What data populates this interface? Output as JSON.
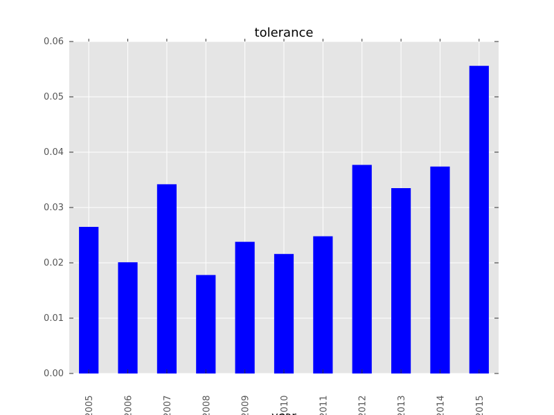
{
  "chart_data": {
    "type": "bar",
    "title": "tolerance",
    "xlabel": "year",
    "ylabel": "",
    "categories": [
      "2005",
      "2006",
      "2007",
      "2008",
      "2009",
      "2010",
      "2011",
      "2012",
      "2013",
      "2014",
      "2015"
    ],
    "values": [
      0.0265,
      0.0201,
      0.0342,
      0.0178,
      0.0238,
      0.0216,
      0.0248,
      0.0377,
      0.0335,
      0.0374,
      0.0556
    ],
    "ylim": [
      0,
      0.06
    ],
    "yticks": [
      "0.00",
      "0.01",
      "0.02",
      "0.03",
      "0.04",
      "0.05",
      "0.06"
    ],
    "grid": true,
    "legend": "none"
  },
  "colors": {
    "bar": "#0000ff",
    "plot_background": "#e5e5e5",
    "grid": "#ffffff",
    "tick_text": "#555555",
    "title_text": "#000000"
  }
}
